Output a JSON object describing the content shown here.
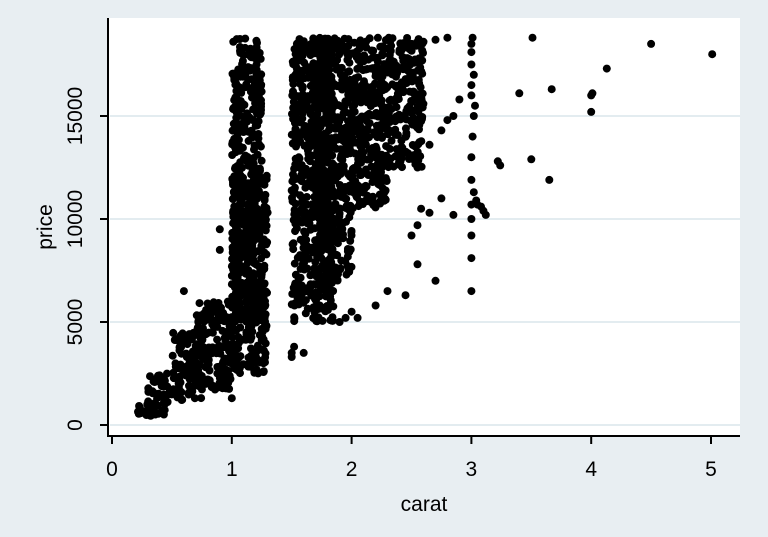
{
  "chart_data": {
    "type": "scatter",
    "title": "",
    "xlabel": "carat",
    "ylabel": "price",
    "xlim": [
      0,
      5.25
    ],
    "ylim": [
      -150,
      19600
    ],
    "x_ticks": [
      0,
      1,
      2,
      3,
      4,
      5
    ],
    "x_tick_labels": [
      "0",
      "1",
      "2",
      "3",
      "4",
      "5"
    ],
    "y_ticks": [
      0,
      5000,
      10000,
      15000
    ],
    "y_tick_labels": [
      "0",
      "5000",
      "10000",
      "15000"
    ],
    "grid": true,
    "legend": "none",
    "colors": {
      "background": "#e8eef2",
      "plot_area": "#ffffff",
      "gridline": "#e3ecf0",
      "marker": "#000000"
    },
    "cluster_regions": [
      {
        "x": [
          0.2,
          0.35
        ],
        "y": [
          330,
          1000
        ]
      },
      {
        "x": [
          0.3,
          0.5
        ],
        "y": [
          500,
          2500
        ]
      },
      {
        "x": [
          0.5,
          0.75
        ],
        "y": [
          1200,
          4500
        ]
      },
      {
        "x": [
          0.7,
          1.0
        ],
        "y": [
          1700,
          6000
        ]
      },
      {
        "x": [
          1.0,
          1.3
        ],
        "y": [
          2500,
          12500
        ]
      },
      {
        "x": [
          1.0,
          1.25
        ],
        "y": [
          5000,
          18800
        ]
      },
      {
        "x": [
          1.5,
          1.85
        ],
        "y": [
          5000,
          18800
        ]
      },
      {
        "x": [
          1.7,
          2.0
        ],
        "y": [
          7000,
          18800
        ]
      },
      {
        "x": [
          2.0,
          2.3
        ],
        "y": [
          10500,
          18800
        ]
      },
      {
        "x": [
          2.3,
          2.6
        ],
        "y": [
          12500,
          18800
        ]
      }
    ],
    "edge_points": [
      [
        0.6,
        6500
      ],
      [
        0.72,
        5000
      ],
      [
        0.9,
        8500
      ],
      [
        0.9,
        9500
      ],
      [
        1.0,
        1300
      ],
      [
        1.5,
        3500
      ],
      [
        1.5,
        3300
      ],
      [
        1.52,
        3800
      ],
      [
        1.6,
        3500
      ],
      [
        1.9,
        5000
      ],
      [
        1.95,
        5200
      ],
      [
        2.0,
        5500
      ],
      [
        2.05,
        5200
      ],
      [
        2.2,
        5800
      ],
      [
        2.3,
        6500
      ],
      [
        2.45,
        6300
      ],
      [
        2.55,
        7800
      ],
      [
        2.7,
        7000
      ],
      [
        2.5,
        9200
      ],
      [
        2.55,
        9700
      ],
      [
        2.58,
        10500
      ],
      [
        2.65,
        10300
      ],
      [
        2.75,
        11000
      ],
      [
        2.85,
        10200
      ],
      [
        2.55,
        12500
      ],
      [
        2.65,
        13600
      ],
      [
        2.75,
        14300
      ],
      [
        2.8,
        14800
      ],
      [
        2.85,
        15000
      ],
      [
        2.9,
        15800
      ],
      [
        2.4,
        18200
      ],
      [
        2.5,
        18500
      ],
      [
        2.6,
        18600
      ],
      [
        2.7,
        18700
      ],
      [
        2.8,
        18800
      ],
      [
        3.0,
        6500
      ],
      [
        3.0,
        8100
      ],
      [
        3.0,
        9200
      ],
      [
        3.0,
        10000
      ],
      [
        3.0,
        10700
      ],
      [
        3.02,
        11300
      ],
      [
        3.04,
        10900
      ],
      [
        3.05,
        10700
      ],
      [
        3.08,
        10600
      ],
      [
        3.1,
        10400
      ],
      [
        3.12,
        10200
      ],
      [
        3.0,
        11900
      ],
      [
        3.0,
        13000
      ],
      [
        3.01,
        14000
      ],
      [
        3.02,
        15000
      ],
      [
        3.03,
        15500
      ],
      [
        3.0,
        16000
      ],
      [
        3.0,
        16500
      ],
      [
        3.02,
        17000
      ],
      [
        3.0,
        17500
      ],
      [
        3.0,
        18100
      ],
      [
        3.0,
        18500
      ],
      [
        3.01,
        18800
      ],
      [
        3.22,
        12800
      ],
      [
        3.24,
        12600
      ],
      [
        3.4,
        16100
      ],
      [
        3.5,
        12900
      ],
      [
        3.51,
        18800
      ],
      [
        3.65,
        11900
      ],
      [
        3.67,
        16300
      ],
      [
        4.0,
        15200
      ],
      [
        4.0,
        16000
      ],
      [
        4.01,
        16100
      ],
      [
        4.13,
        17300
      ],
      [
        4.5,
        18500
      ],
      [
        5.01,
        18000
      ]
    ]
  }
}
